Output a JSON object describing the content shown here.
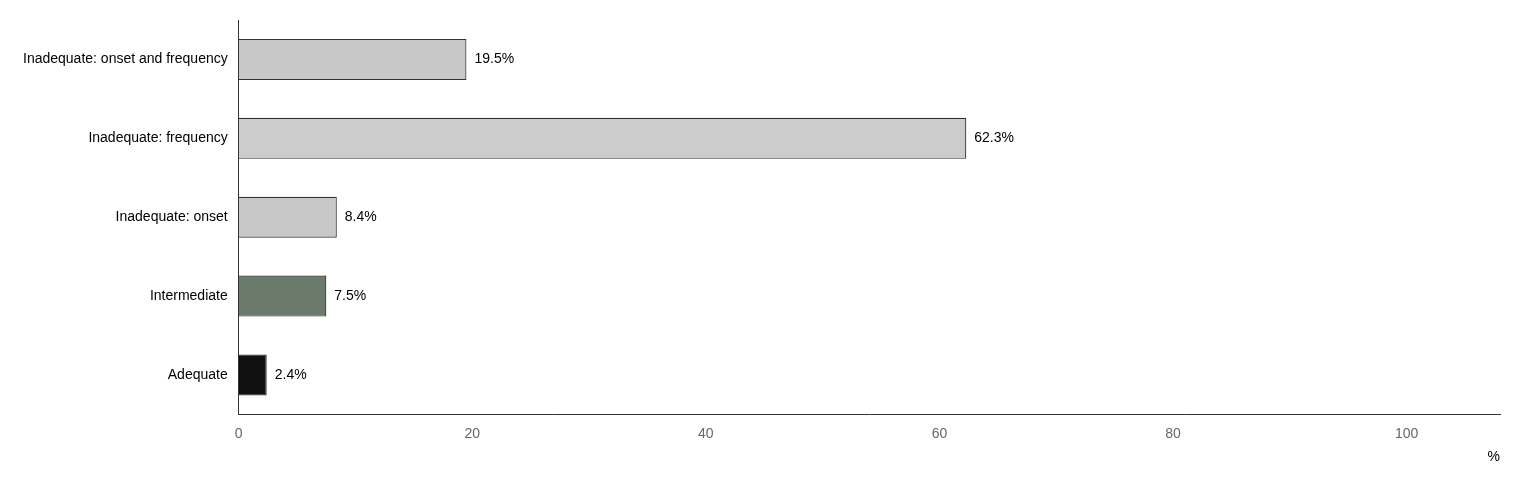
{
  "chart_data": {
    "type": "bar",
    "orientation": "horizontal",
    "categories": [
      "Adequate",
      "Intermediate",
      "Inadequate: onset",
      "Inadequate: frequency",
      "Inadequate: onset and frequency"
    ],
    "values": [
      2.4,
      7.5,
      8.4,
      62.3,
      19.5
    ],
    "value_labels": [
      "2.4%",
      "7.5%",
      "8.4%",
      "62.3%",
      "19.5%"
    ],
    "colors": [
      "#111111",
      "#6b7b6b",
      "#c8c8c8",
      "#cccccc",
      "#c8c8c8"
    ],
    "xlim": [
      0,
      108
    ],
    "xticks": [
      0,
      20,
      40,
      60,
      80,
      100
    ],
    "xlabel": "%",
    "grid": false,
    "data_labels": true
  }
}
